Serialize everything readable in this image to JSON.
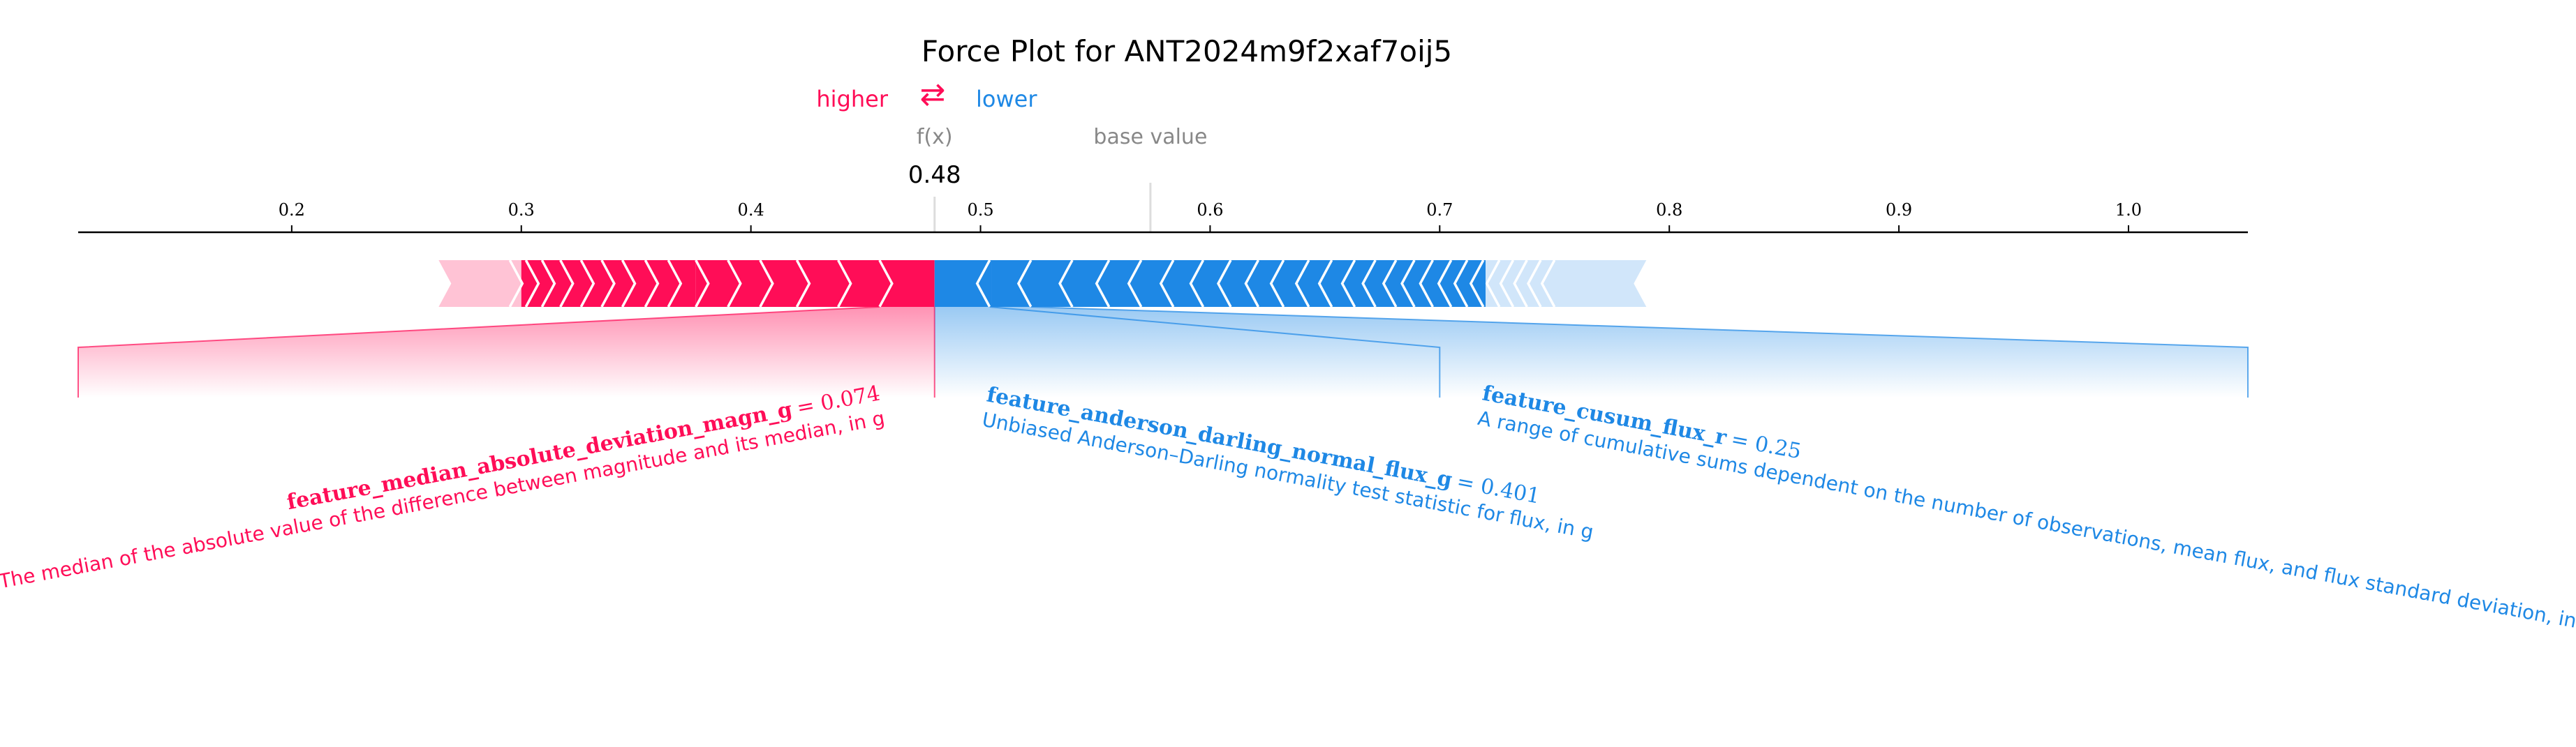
{
  "chart_data": {
    "type": "force_plot",
    "title": "Force Plot for ANT2024m9f2xaf7oij5",
    "legend": {
      "higher": "higher",
      "lower": "lower",
      "arrow": "⇄"
    },
    "fx_label": "f(x)",
    "base_value_label": "base value",
    "fx": 0.48,
    "fx_text": "0.48",
    "base_value": 0.574,
    "xlim": [
      0.107,
      1.052
    ],
    "ticks": [
      0.2,
      0.3,
      0.4,
      0.5,
      0.6,
      0.7,
      0.8,
      0.9,
      1.0
    ],
    "tick_labels": [
      "0.2",
      "0.3",
      "0.4",
      "0.5",
      "0.6",
      "0.7",
      "0.8",
      "0.9",
      "1.0"
    ],
    "positive_range": [
      0.264,
      0.48
    ],
    "negative_range": [
      0.48,
      0.79
    ],
    "features": [
      {
        "direction": "higher",
        "name": "feature_median_absolute_deviation_magn_g",
        "value_text": "= 0.074",
        "description": "The median of the absolute value of the difference between magnitude and its median, in g"
      },
      {
        "direction": "lower",
        "name": "feature_anderson_darling_normal_flux_g",
        "value_text": "= 0.401",
        "description": "Unbiased Anderson–Darling normality test statistic for flux, in g"
      },
      {
        "direction": "lower",
        "name": "feature_cusum_flux_r",
        "value_text": "= 0.25",
        "description": "A range of cumulative sums dependent on the number of observations, mean flux, and flux standard deviation, in r"
      }
    ],
    "colors": {
      "positive": "#ff0d57",
      "positive_light": "#ffc3d5",
      "negative": "#1e88e5",
      "negative_light": "#d1e6fa",
      "axis": "#000000",
      "muted": "#888888"
    }
  }
}
